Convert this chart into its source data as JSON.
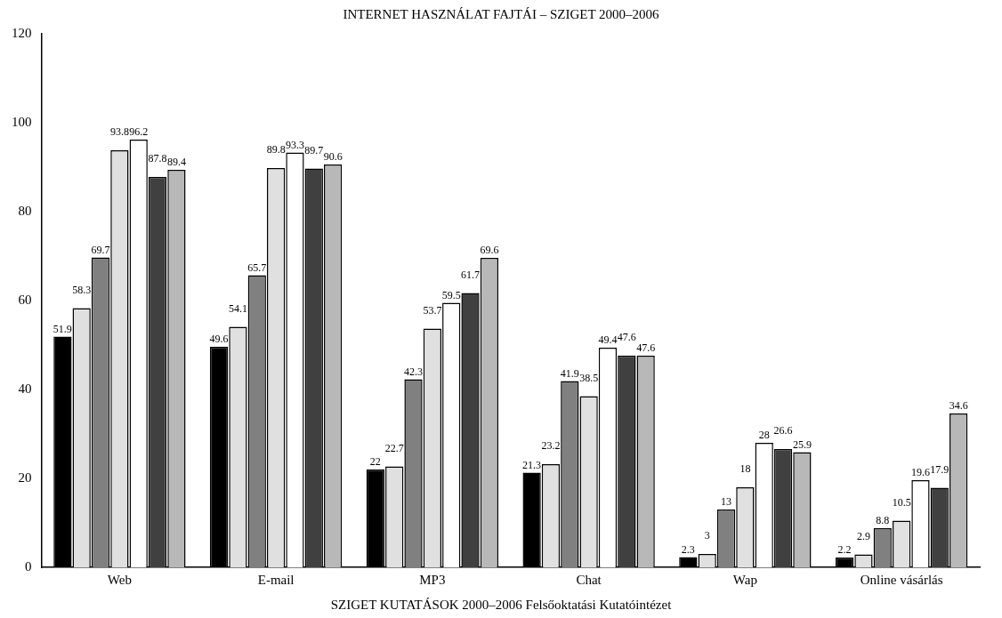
{
  "chart_data": {
    "type": "bar",
    "title": "INTERNET HASZNÁLAT FAJTÁI – SZIGET 2000–2006",
    "annotations": [
      "SZIGET KUTATÁSOK 2000–2006 Felsőoktatási Kutatóintézet"
    ],
    "categories": [
      "Web",
      "E-mail",
      "MP3",
      "Chat",
      "Wap",
      "Online vásárlás"
    ],
    "series": [
      {
        "color": "#000000",
        "values": [
          51.9,
          49.6,
          22,
          21.3,
          2.3,
          2.2
        ]
      },
      {
        "color": "#e0e0e0",
        "values": [
          58.3,
          54.1,
          22.7,
          23.2,
          3,
          2.9
        ]
      },
      {
        "color": "#808080",
        "values": [
          69.7,
          65.7,
          42.3,
          41.9,
          13,
          8.8
        ]
      },
      {
        "color": "#e0e0e0",
        "values": [
          93.8,
          89.8,
          53.7,
          38.5,
          18,
          10.5
        ]
      },
      {
        "color": "#ffffff",
        "values": [
          96.2,
          93.3,
          59.5,
          49.4,
          28,
          19.6
        ]
      },
      {
        "color": "#404040",
        "values": [
          87.8,
          89.7,
          61.7,
          47.6,
          26.6,
          17.9
        ]
      },
      {
        "color": "#b8b8b8",
        "values": [
          89.4,
          90.6,
          69.6,
          47.6,
          25.9,
          34.6
        ]
      }
    ],
    "ylim": [
      0,
      120
    ],
    "yticks": [
      0,
      20,
      40,
      60,
      80,
      100,
      120
    ],
    "grid": false,
    "legend": false,
    "data_labels": true
  }
}
